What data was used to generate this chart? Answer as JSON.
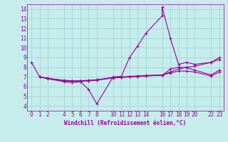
{
  "xlabel": "Windchill (Refroidissement éolien,°C)",
  "bg_color": "#c6ecec",
  "line_color": "#990099",
  "grid_color": "#a8d8d8",
  "xlim": [
    -0.5,
    23.5
  ],
  "ylim": [
    3.5,
    14.5
  ],
  "xticks": [
    0,
    1,
    2,
    4,
    5,
    6,
    7,
    8,
    10,
    11,
    12,
    13,
    14,
    16,
    17,
    18,
    19,
    20,
    22,
    23
  ],
  "yticks": [
    4,
    5,
    6,
    7,
    8,
    9,
    10,
    11,
    12,
    13,
    14
  ],
  "series_main": [
    [
      0,
      8.5
    ],
    [
      1,
      7.0
    ],
    [
      2,
      6.8
    ],
    [
      4,
      6.5
    ],
    [
      5,
      6.4
    ],
    [
      6,
      6.5
    ],
    [
      7,
      5.7
    ],
    [
      8,
      4.2
    ],
    [
      10,
      7.0
    ],
    [
      11,
      7.05
    ],
    [
      12,
      9.0
    ],
    [
      13,
      10.2
    ],
    [
      14,
      11.5
    ],
    [
      16,
      13.3
    ],
    [
      16,
      14.2
    ],
    [
      17,
      11.0
    ],
    [
      18,
      8.3
    ],
    [
      19,
      8.5
    ],
    [
      20,
      8.3
    ],
    [
      22,
      8.5
    ],
    [
      23,
      9.0
    ]
  ],
  "series_flat1": [
    [
      1,
      7.0
    ],
    [
      2,
      6.85
    ],
    [
      4,
      6.65
    ],
    [
      5,
      6.6
    ],
    [
      6,
      6.6
    ],
    [
      7,
      6.65
    ],
    [
      8,
      6.7
    ],
    [
      10,
      6.95
    ],
    [
      11,
      7.0
    ],
    [
      12,
      7.05
    ],
    [
      13,
      7.1
    ],
    [
      14,
      7.15
    ],
    [
      16,
      7.2
    ],
    [
      17,
      7.5
    ],
    [
      18,
      7.8
    ],
    [
      19,
      8.0
    ],
    [
      20,
      8.1
    ],
    [
      22,
      8.5
    ],
    [
      23,
      8.8
    ]
  ],
  "series_flat2": [
    [
      1,
      7.0
    ],
    [
      2,
      6.85
    ],
    [
      4,
      6.6
    ],
    [
      5,
      6.55
    ],
    [
      6,
      6.55
    ],
    [
      7,
      6.6
    ],
    [
      8,
      6.65
    ],
    [
      10,
      6.9
    ],
    [
      11,
      6.95
    ],
    [
      12,
      7.0
    ],
    [
      13,
      7.05
    ],
    [
      14,
      7.1
    ],
    [
      16,
      7.15
    ],
    [
      17,
      7.8
    ],
    [
      18,
      8.0
    ],
    [
      19,
      7.95
    ],
    [
      20,
      7.7
    ],
    [
      22,
      7.2
    ],
    [
      23,
      7.7
    ]
  ],
  "series_flat3": [
    [
      1,
      7.0
    ],
    [
      2,
      6.85
    ],
    [
      4,
      6.6
    ],
    [
      5,
      6.55
    ],
    [
      6,
      6.55
    ],
    [
      7,
      6.6
    ],
    [
      8,
      6.7
    ],
    [
      10,
      6.9
    ],
    [
      11,
      6.95
    ],
    [
      12,
      7.0
    ],
    [
      13,
      7.05
    ],
    [
      14,
      7.1
    ],
    [
      16,
      7.2
    ],
    [
      17,
      7.4
    ],
    [
      18,
      7.6
    ],
    [
      19,
      7.6
    ],
    [
      20,
      7.5
    ],
    [
      22,
      7.1
    ],
    [
      23,
      7.5
    ]
  ]
}
